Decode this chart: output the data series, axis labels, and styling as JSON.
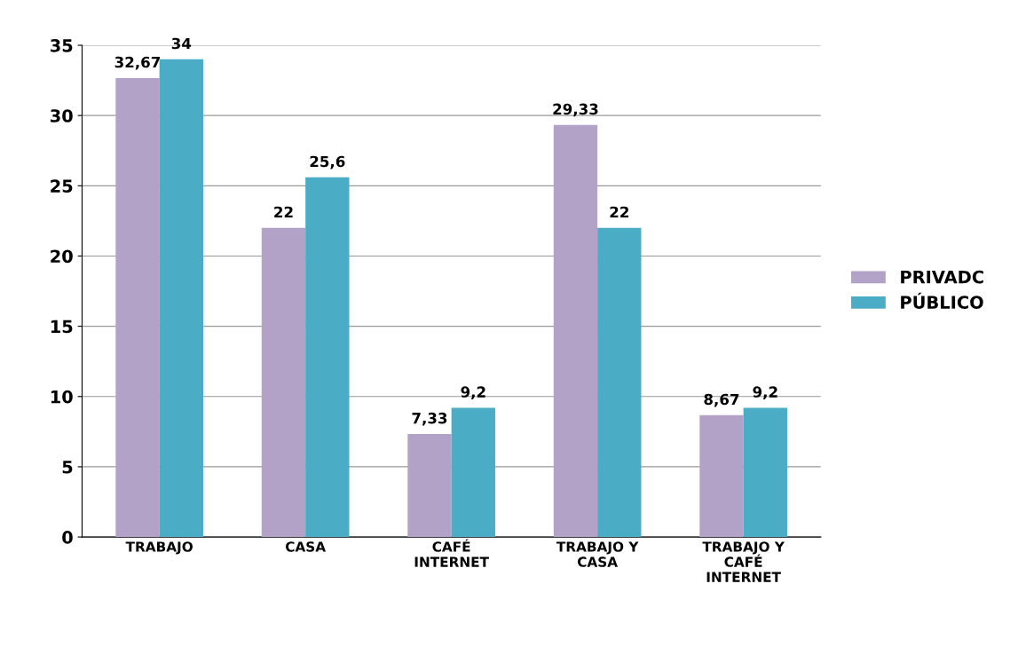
{
  "chart_data": {
    "type": "bar",
    "categories": [
      "TRABAJO",
      "CASA",
      "CAFÉ\nINTERNET",
      "TRABAJO Y\nCASA",
      "TRABAJO Y\nCAFÉ\nINTERNET"
    ],
    "series": [
      {
        "name": "PRIVADC",
        "color": "#b3a2c7",
        "values": [
          32.67,
          22,
          7.33,
          29.33,
          8.67
        ],
        "value_labels": [
          "32,67",
          "22",
          "7,33",
          "29,33",
          "8,67"
        ]
      },
      {
        "name": "PÚBLICO",
        "color": "#4bacc6",
        "values": [
          34,
          25.6,
          9.2,
          22,
          9.2
        ],
        "value_labels": [
          "34",
          "25,6",
          "9,2",
          "22",
          "9,2"
        ]
      }
    ],
    "ylim": [
      0,
      35
    ],
    "yticks": [
      0,
      5,
      10,
      15,
      20,
      25,
      30,
      35
    ],
    "grid": "y",
    "legend": "right"
  }
}
